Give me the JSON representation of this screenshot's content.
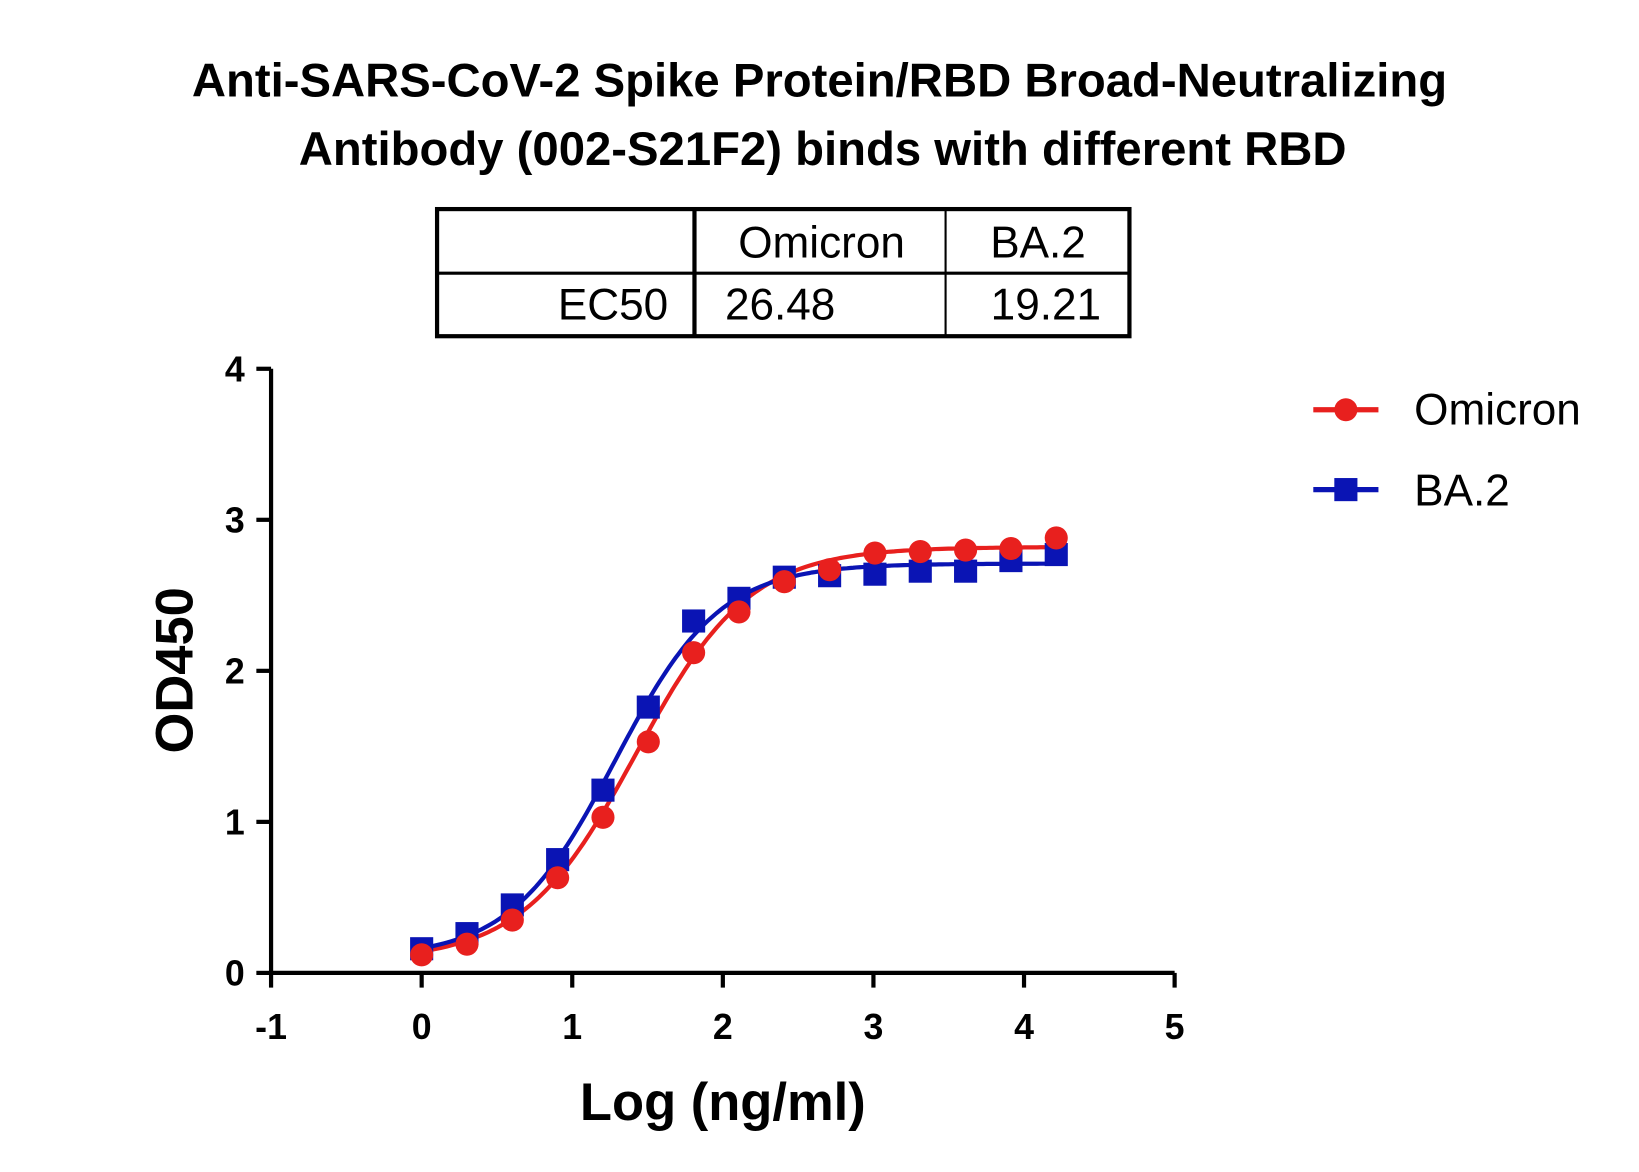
{
  "chart_data": {
    "type": "line",
    "title_lines": [
      "Anti-SARS-CoV-2 Spike Protein/RBD Broad-Neutralizing",
      "Antibody (002-S21F2) binds with different RBD"
    ],
    "xlabel": "Log (ng/ml)",
    "ylabel": "OD450",
    "xlim": [
      -1,
      5
    ],
    "ylim": [
      0,
      4
    ],
    "xticks": [
      "-1",
      "0",
      "1",
      "2",
      "3",
      "4",
      "5"
    ],
    "yticks": [
      "0",
      "1",
      "2",
      "3",
      "4"
    ],
    "grid": false,
    "legend_position": "top-right",
    "x": [
      0,
      0.301,
      0.602,
      0.903,
      1.204,
      1.505,
      1.806,
      2.107,
      2.408,
      2.709,
      3.01,
      3.311,
      3.612,
      3.913,
      4.214
    ],
    "series": [
      {
        "name": "Omicron",
        "color": "#e8201e",
        "marker": "circle",
        "values": [
          0.12,
          0.19,
          0.35,
          0.63,
          1.03,
          1.53,
          2.12,
          2.39,
          2.59,
          2.67,
          2.78,
          2.79,
          2.8,
          2.81,
          2.88
        ],
        "fit": {
          "bottom": 0.08,
          "top": 2.82,
          "logEC50": 1.423,
          "hill": 1.15
        }
      },
      {
        "name": "BA.2",
        "color": "#0a14b4",
        "marker": "square",
        "values": [
          0.16,
          0.26,
          0.45,
          0.75,
          1.21,
          1.76,
          2.33,
          2.48,
          2.62,
          2.63,
          2.64,
          2.66,
          2.66,
          2.73,
          2.77
        ],
        "fit": {
          "bottom": 0.1,
          "top": 2.71,
          "logEC50": 1.284,
          "hill": 1.25
        }
      }
    ],
    "table": {
      "headers": [
        "",
        "Omicron",
        "BA.2"
      ],
      "rows": [
        [
          "EC50",
          "26.48",
          "19.21"
        ]
      ]
    }
  }
}
